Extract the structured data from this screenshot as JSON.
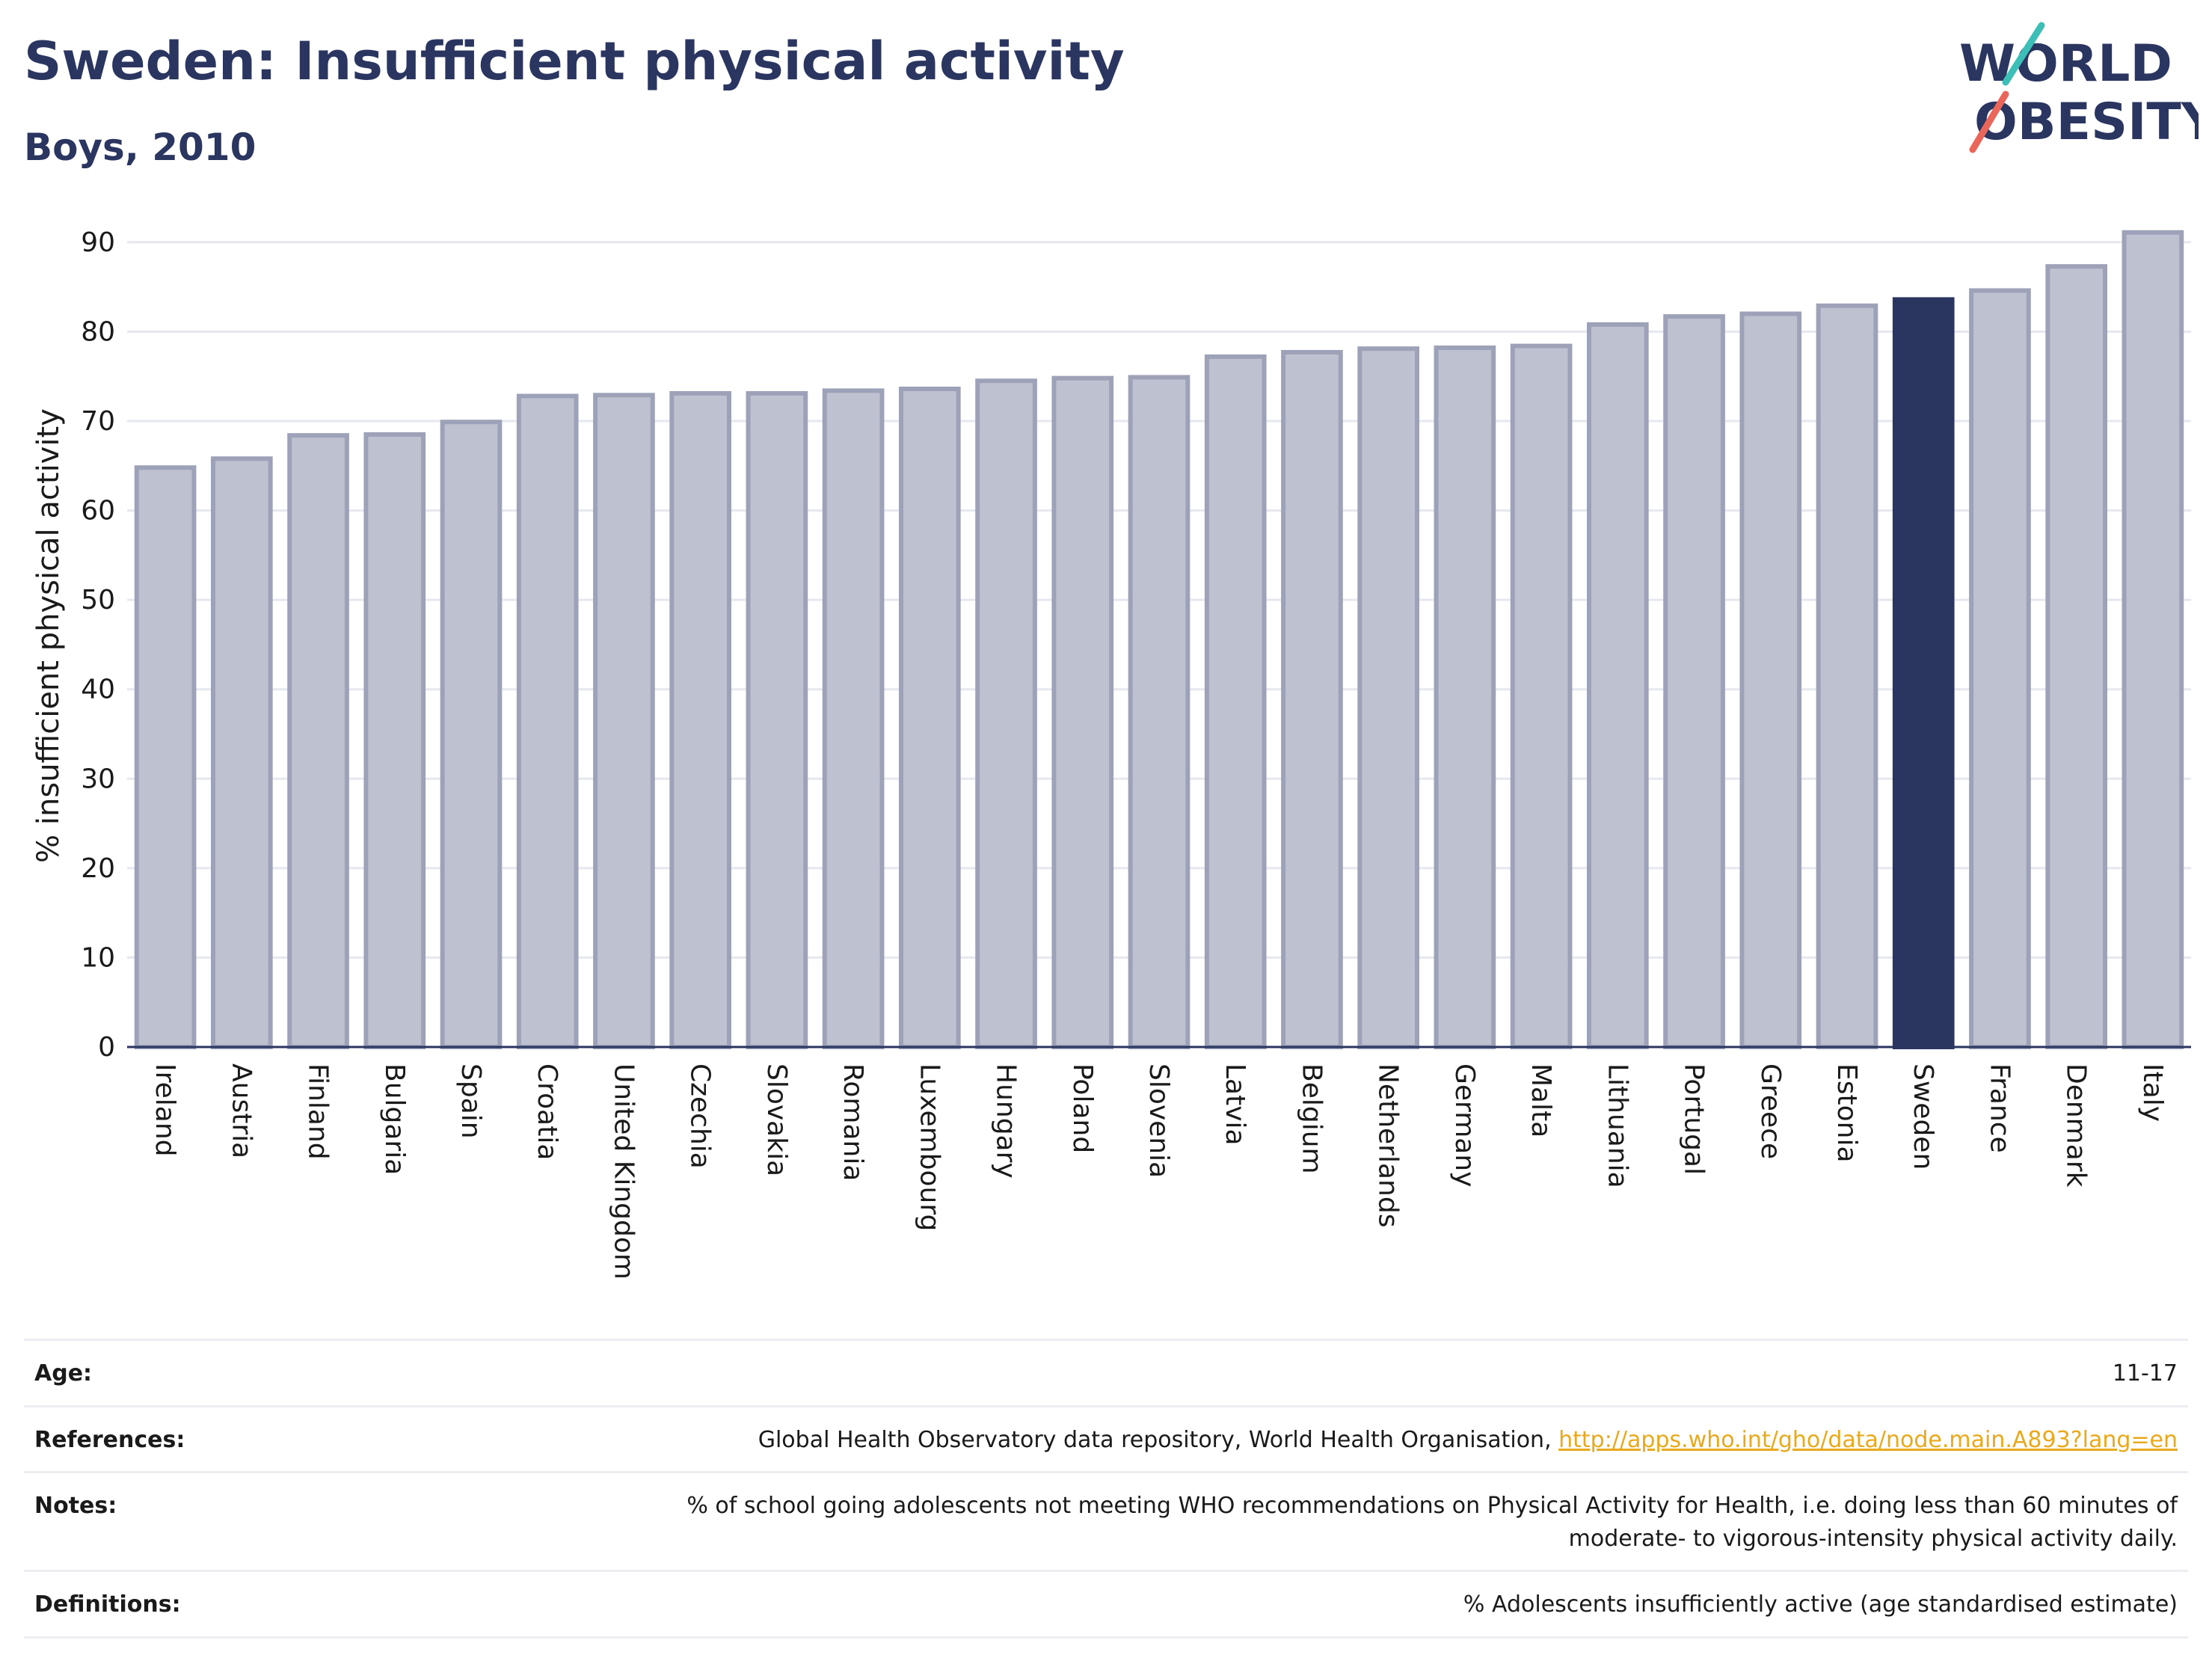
{
  "header": {
    "title": "Sweden: Insufficient physical activity",
    "subtitle": "Boys, 2010"
  },
  "logo": {
    "line1": "WORLD",
    "line2": "OBESITY",
    "colors": {
      "text": "#2a3560",
      "slash_teal": "#3dbfb8",
      "slash_coral": "#e8675a"
    }
  },
  "chart_data": {
    "type": "bar",
    "ylabel": "% insufficient physical activity",
    "xlabel": "",
    "ylim": [
      0,
      92
    ],
    "yticks": [
      0,
      10,
      20,
      30,
      40,
      50,
      60,
      70,
      80,
      90
    ],
    "grid": true,
    "highlight": "Sweden",
    "categories": [
      "Ireland",
      "Austria",
      "Finland",
      "Bulgaria",
      "Spain",
      "Croatia",
      "United Kingdom",
      "Czechia",
      "Slovakia",
      "Romania",
      "Luxembourg",
      "Hungary",
      "Poland",
      "Slovenia",
      "Latvia",
      "Belgium",
      "Netherlands",
      "Germany",
      "Malta",
      "Lithuania",
      "Portugal",
      "Greece",
      "Estonia",
      "Sweden",
      "France",
      "Denmark",
      "Italy"
    ],
    "values": [
      64.8,
      65.8,
      68.4,
      68.5,
      69.9,
      72.8,
      72.9,
      73.1,
      73.1,
      73.4,
      73.6,
      74.5,
      74.8,
      74.9,
      77.2,
      77.7,
      78.1,
      78.2,
      78.4,
      80.8,
      81.7,
      82.0,
      82.9,
      83.6,
      84.6,
      87.3,
      91.1
    ],
    "colors": {
      "bar": "#bec1cf",
      "bar_border": "#9da2b8",
      "highlight": "#2a3560",
      "grid": "#e6e8ef",
      "axis": "#2a3560"
    }
  },
  "metadata": {
    "age_label": "Age:",
    "age_value": "11-17",
    "references_label": "References:",
    "references_text": "Global Health Observatory data repository, World Health Organisation, ",
    "references_link": "http://apps.who.int/gho/data/node.main.A893?lang=en",
    "notes_label": "Notes:",
    "notes_value": "% of school going adolescents not meeting WHO recommendations on Physical Activity for Health, i.e. doing less than 60 minutes of moderate- to vigorous-intensity physical activity daily.",
    "definitions_label": "Definitions:",
    "definitions_value": "% Adolescents insufficiently active (age standardised estimate)"
  }
}
